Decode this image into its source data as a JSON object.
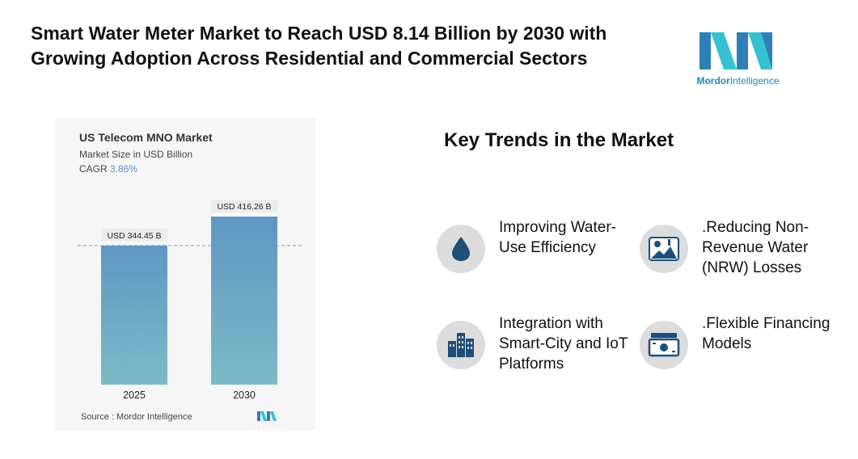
{
  "header": {
    "title_line1": "Smart Water Meter Market to Reach USD 8.14 Billion by 2030 with",
    "title_line2": "Growing Adoption Across Residential and Commercial Sectors"
  },
  "brand": {
    "word1": "Mordor",
    "word2": "Intelligence",
    "colors": [
      "#2f7fb8",
      "#35c1d1"
    ]
  },
  "chart_data": {
    "type": "bar",
    "title": "US Telecom MNO Market",
    "subtitle": "Market Size in USD Billion",
    "cagr_label": "CAGR",
    "cagr_value": "3.86%",
    "categories": [
      "2025",
      "2030"
    ],
    "values": [
      344.45,
      416.26
    ],
    "data_labels": [
      "USD 344.45 B",
      "USD 416.26 B"
    ],
    "ylim": [
      0,
      416.26
    ],
    "reference_line": 344.45,
    "bar_gradient": [
      "#5f97c3",
      "#7cbac6"
    ],
    "source": "Source :  Mordor Intelligence"
  },
  "trends": {
    "heading": "Key Trends in the Market",
    "items": [
      {
        "icon": "water-drop-icon",
        "label": "Improving Water-Use Efficiency"
      },
      {
        "icon": "landscape-icon",
        "label": ".Reducing Non-Revenue Water (NRW) Losses"
      },
      {
        "icon": "city-buildings-icon",
        "label": "Integration with Smart-City and IoT Platforms"
      },
      {
        "icon": "money-stack-icon",
        "label": ".Flexible Financing Models"
      }
    ]
  }
}
